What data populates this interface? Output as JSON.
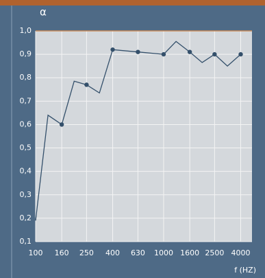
{
  "chart_data": {
    "type": "line",
    "y_symbol": "α",
    "xlabel": "f (HZ)",
    "xscale": "log",
    "xlim": [
      100,
      4900
    ],
    "xticks": [
      100,
      160,
      250,
      400,
      630,
      1000,
      1600,
      2500,
      4000
    ],
    "ylim": [
      0.1,
      1.0
    ],
    "yticks": [
      {
        "value": 0.1,
        "label": "0,1"
      },
      {
        "value": 0.2,
        "label": "0,2"
      },
      {
        "value": 0.3,
        "label": "0,3"
      },
      {
        "value": 0.4,
        "label": "0,4"
      },
      {
        "value": 0.5,
        "label": "0,5"
      },
      {
        "value": 0.6,
        "label": "0,6"
      },
      {
        "value": 0.7,
        "label": "0,7"
      },
      {
        "value": 0.8,
        "label": "0,8"
      },
      {
        "value": 0.9,
        "label": "0,9"
      },
      {
        "value": 1.0,
        "label": "1,0"
      }
    ],
    "grid": true,
    "series": [
      {
        "color": "#34506b",
        "marker": false,
        "x": [
          100,
          125,
          160,
          200,
          250,
          315,
          400,
          630,
          1000,
          1250,
          1600,
          2000,
          2500,
          3150,
          4000
        ],
        "values": [
          0.19,
          0.64,
          0.6,
          0.785,
          0.77,
          0.735,
          0.92,
          0.91,
          0.9,
          0.955,
          0.91,
          0.865,
          0.9,
          0.85,
          0.9
        ]
      },
      {
        "color": "#34506b",
        "marker": true,
        "x": [
          160,
          250,
          400,
          630,
          1000,
          1600,
          2500,
          4000
        ],
        "values": [
          0.6,
          0.77,
          0.92,
          0.91,
          0.9,
          0.91,
          0.9,
          0.9
        ]
      }
    ]
  }
}
